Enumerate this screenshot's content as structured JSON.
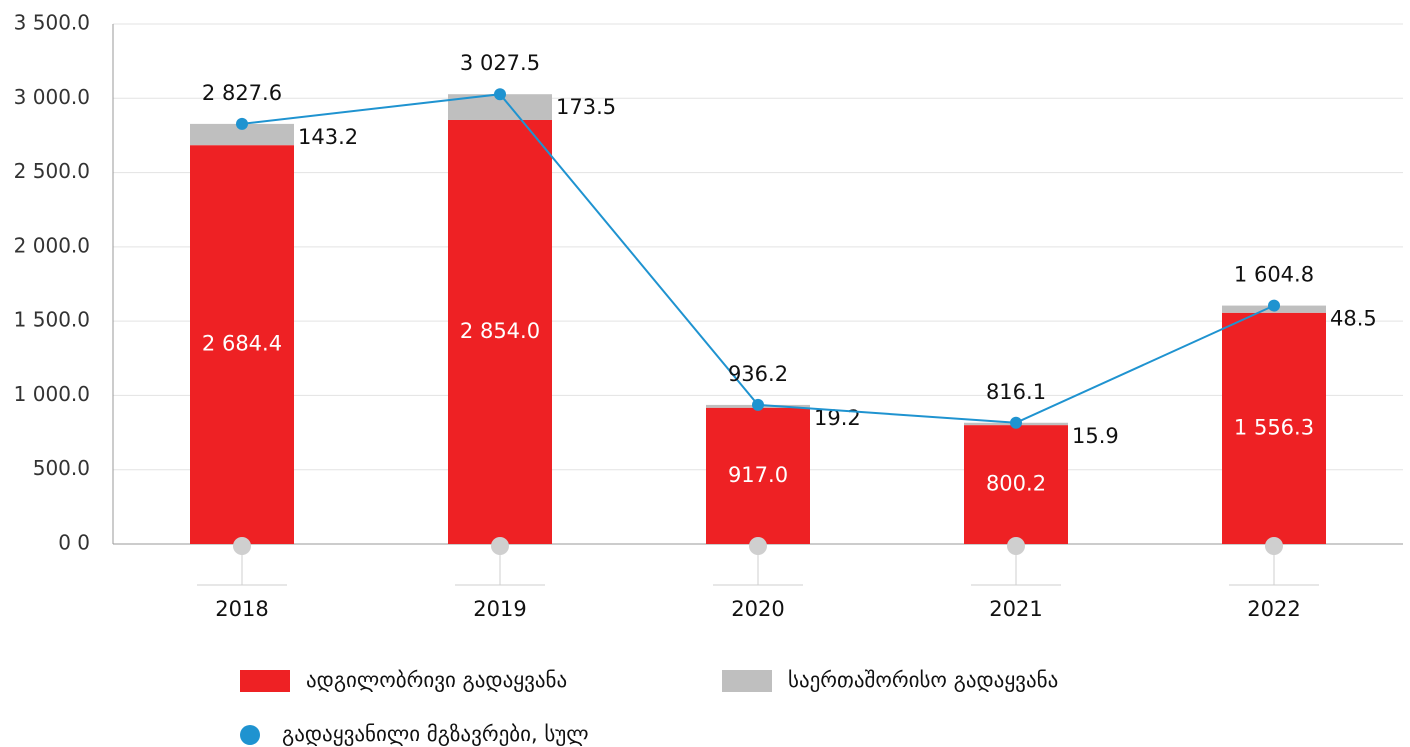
{
  "chart_data": {
    "type": "bar",
    "stacked": true,
    "categories": [
      "2018",
      "2019",
      "2020",
      "2021",
      "2022"
    ],
    "series": [
      {
        "name": "ადგილობრივი გადაყვანა",
        "color": "#ee2124",
        "values": [
          2684.4,
          2854.0,
          917.0,
          800.2,
          1556.3
        ],
        "value_labels": [
          "2 684.4",
          "2 854.0",
          "917.0",
          "800.2",
          "1 556.3"
        ]
      },
      {
        "name": "საერთაშორისო გადაყვანა",
        "color": "#bfbfbf",
        "values": [
          143.2,
          173.5,
          19.2,
          15.9,
          48.5
        ]
      },
      {
        "name": "გადაყვანილი მგზავრები, სულ",
        "type": "line",
        "color": "#1f93d0",
        "values": [
          2827.6,
          3027.5,
          936.2,
          816.1,
          1604.8
        ],
        "value_labels": [
          "2 827.6",
          "3 027.5",
          "936.2",
          "816.1",
          "1 604.8"
        ]
      }
    ],
    "ylim": [
      0,
      3500
    ],
    "yticks": [
      {
        "value": 0,
        "label": "0 0"
      },
      {
        "value": 500,
        "label": "500.0"
      },
      {
        "value": 1000,
        "label": "1 000.0"
      },
      {
        "value": 1500,
        "label": "1 500.0"
      },
      {
        "value": 2000,
        "label": "2 000.0"
      },
      {
        "value": 2500,
        "label": "2 500.0"
      },
      {
        "value": 3000,
        "label": "3 000.0"
      },
      {
        "value": 3500,
        "label": "3 500.0"
      }
    ],
    "grid": true,
    "legend": "bottom"
  }
}
